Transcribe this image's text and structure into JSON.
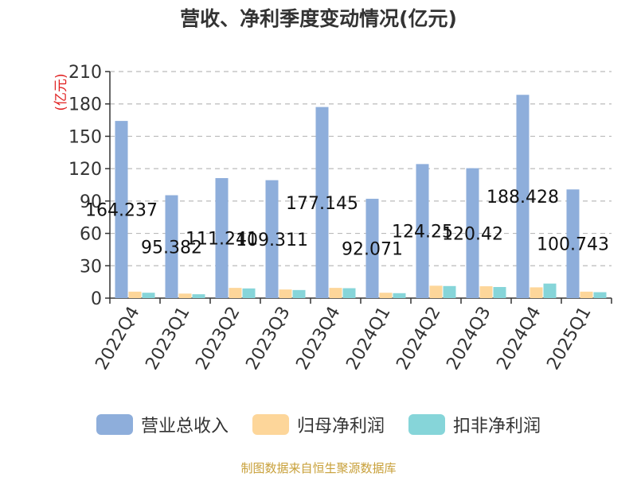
{
  "chart_data": {
    "type": "bar",
    "title": "营收、净利季度变动情况(亿元)",
    "ylabel": "(亿元)",
    "ylim": [
      0,
      210
    ],
    "yticks": [
      0,
      30,
      60,
      90,
      120,
      150,
      180,
      210
    ],
    "categories": [
      "2022Q4",
      "2023Q1",
      "2023Q2",
      "2023Q3",
      "2023Q4",
      "2024Q1",
      "2024Q2",
      "2024Q3",
      "2024Q4",
      "2025Q1"
    ],
    "series": [
      {
        "name": "营业总收入",
        "color": "#8eaedb",
        "values": [
          164.237,
          95.382,
          111.241,
          109.311,
          177.145,
          92.071,
          124.25,
          120.42,
          188.428,
          100.743
        ],
        "labels": [
          "164.237",
          "95.382",
          "111.241",
          "109.311",
          "177.145",
          "92.071",
          "124.25",
          "120.42",
          "188.428",
          "100.743"
        ]
      },
      {
        "name": "归母净利润",
        "color": "#fdd69a",
        "values": [
          6.0,
          4.2,
          9.5,
          8.0,
          9.5,
          5.0,
          11.5,
          11.0,
          10.0,
          6.0
        ]
      },
      {
        "name": "扣非净利润",
        "color": "#86d5d9",
        "values": [
          5.0,
          3.6,
          9.0,
          7.5,
          9.2,
          4.6,
          11.2,
          10.3,
          13.5,
          5.5
        ]
      }
    ],
    "grid": true,
    "legend_position": "bottom"
  },
  "source_note": "制图数据来自恒生聚源数据库"
}
